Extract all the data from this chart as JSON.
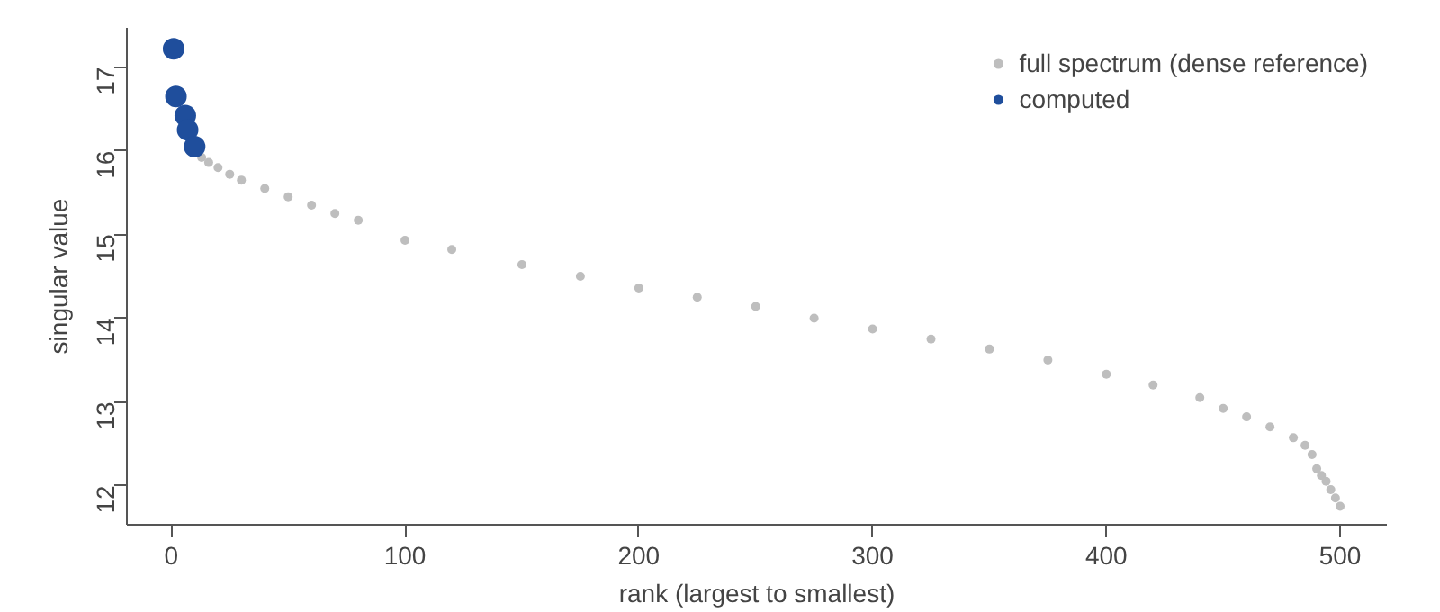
{
  "chart_data": {
    "type": "scatter",
    "xlabel": "rank (largest to smallest)",
    "ylabel": "singular value",
    "xlim": [
      -19,
      520
    ],
    "ylim": [
      11.53,
      17.47
    ],
    "xticks": [
      0,
      100,
      200,
      300,
      400,
      500
    ],
    "yticks": [
      12,
      13,
      14,
      15,
      16,
      17
    ],
    "grid": false,
    "legend": "top right",
    "marker": "circle",
    "series": [
      {
        "name": "full spectrum (dense reference)",
        "color": "#bebebe",
        "x": [
          13,
          16,
          20,
          25,
          30,
          40,
          50,
          60,
          70,
          80,
          100,
          120,
          150,
          175,
          200,
          225,
          250,
          275,
          300,
          325,
          350,
          375,
          400,
          420,
          440,
          450,
          460,
          470,
          480,
          485,
          488,
          490,
          492,
          494,
          496,
          498,
          500
        ],
        "values": [
          15.92,
          15.86,
          15.8,
          15.72,
          15.65,
          15.55,
          15.45,
          15.35,
          15.25,
          15.17,
          14.93,
          14.82,
          14.64,
          14.5,
          14.36,
          14.25,
          14.14,
          14.0,
          13.87,
          13.75,
          13.63,
          13.5,
          13.33,
          13.2,
          13.05,
          12.92,
          12.82,
          12.7,
          12.57,
          12.48,
          12.37,
          12.2,
          12.12,
          12.05,
          11.95,
          11.85,
          11.75
        ]
      },
      {
        "name": "computed",
        "color": "#1f4e9c",
        "x": [
          1,
          2,
          4,
          5,
          6,
          7,
          9,
          10
        ],
        "values": [
          17.22,
          16.65,
          null,
          null,
          16.42,
          16.25,
          null,
          16.05
        ]
      }
    ]
  }
}
